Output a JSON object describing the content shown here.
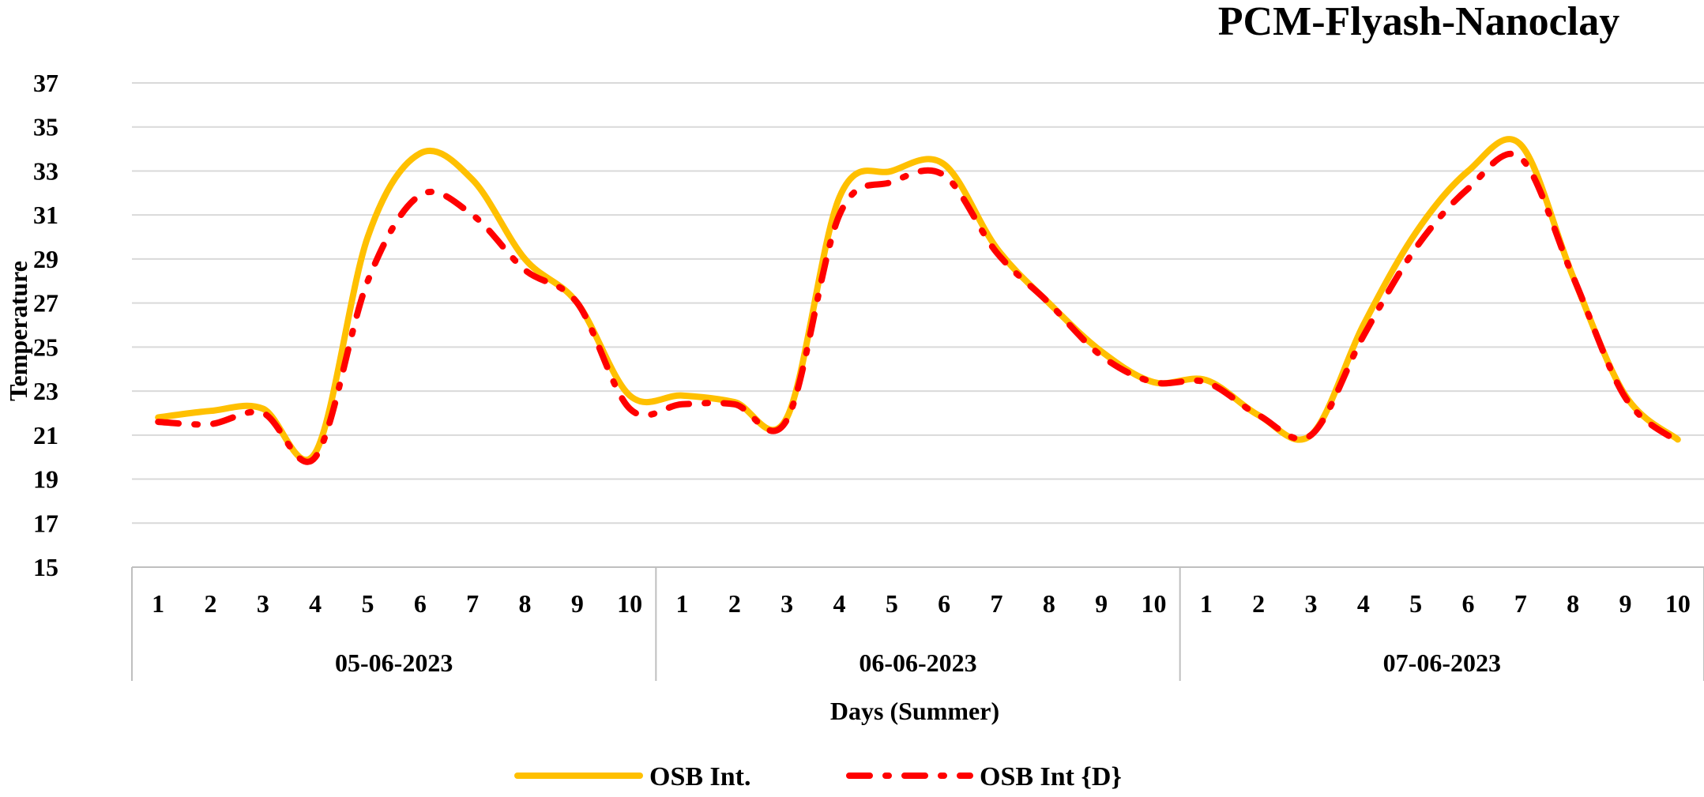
{
  "chart_data": {
    "type": "line",
    "title": "PCM-Flyash-Nanoclay",
    "xlabel": "Days (Summer)",
    "ylabel": "Temperature",
    "ylim": [
      15,
      37
    ],
    "yticks": [
      15,
      17,
      19,
      21,
      23,
      25,
      27,
      29,
      31,
      33,
      35,
      37
    ],
    "grid": true,
    "legend_position": "bottom",
    "groups": [
      {
        "label": "05-06-2023",
        "categories": [
          "1",
          "2",
          "3",
          "4",
          "5",
          "6",
          "7",
          "8",
          "9",
          "10"
        ]
      },
      {
        "label": "06-06-2023",
        "categories": [
          "1",
          "2",
          "3",
          "4",
          "5",
          "6",
          "7",
          "8",
          "9",
          "10"
        ]
      },
      {
        "label": "07-06-2023",
        "categories": [
          "1",
          "2",
          "3",
          "4",
          "5",
          "6",
          "7",
          "8",
          "9",
          "10"
        ]
      }
    ],
    "series": [
      {
        "name": "OSB Int.",
        "color": "#FFC000",
        "style": "solid",
        "values": [
          21.8,
          22.1,
          22.2,
          20.2,
          30.0,
          33.8,
          32.6,
          29.0,
          27.0,
          22.8,
          22.8,
          22.5,
          21.8,
          31.8,
          33.0,
          33.3,
          29.5,
          27.0,
          24.8,
          23.4,
          23.5,
          21.9,
          21.0,
          26.0,
          30.2,
          33.0,
          34.2,
          28.2,
          22.8,
          20.8
        ]
      },
      {
        "name": "OSB Int {D}",
        "color": "#FF0000",
        "style": "dash-dot",
        "values": [
          21.6,
          21.5,
          22.0,
          20.0,
          28.0,
          31.9,
          31.0,
          28.5,
          27.0,
          22.2,
          22.4,
          22.4,
          21.7,
          31.0,
          32.5,
          32.8,
          29.3,
          27.0,
          24.6,
          23.4,
          23.4,
          21.9,
          21.0,
          25.5,
          29.5,
          32.2,
          33.6,
          28.2,
          22.7,
          20.7
        ]
      }
    ]
  }
}
